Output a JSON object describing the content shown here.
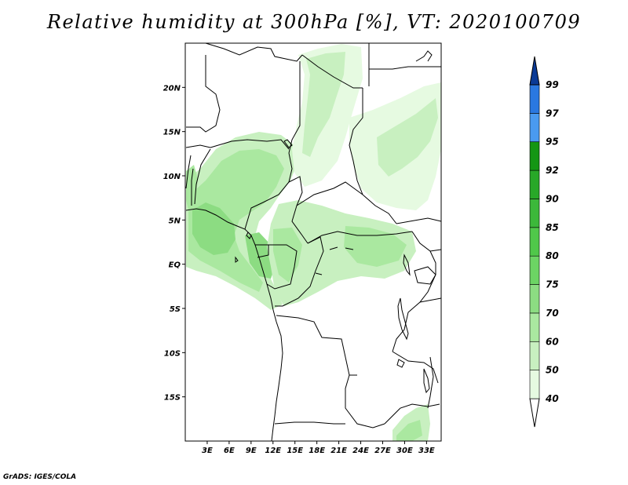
{
  "title": "Relative humidity at 300hPa [%], VT: 2020100709",
  "credit": "GrADS: IGES/COLA",
  "map": {
    "lon_range": [
      0,
      35
    ],
    "lat_range": [
      -20,
      25
    ],
    "lon_ticks": [
      "3E",
      "6E",
      "9E",
      "12E",
      "15E",
      "18E",
      "21E",
      "24E",
      "27E",
      "30E",
      "33E"
    ],
    "lat_ticks": [
      "20N",
      "15N",
      "10N",
      "5N",
      "EQ",
      "5S",
      "10S",
      "15S"
    ],
    "lon_tick_values": [
      3,
      6,
      9,
      12,
      15,
      18,
      21,
      24,
      27,
      30,
      33
    ],
    "lat_tick_values": [
      20,
      15,
      10,
      5,
      0,
      -5,
      -10,
      -15
    ]
  },
  "colorbar": {
    "levels": [
      "40",
      "50",
      "60",
      "70",
      "75",
      "80",
      "85",
      "90",
      "92",
      "95",
      "97",
      "99"
    ],
    "colors": [
      "#e6fae1",
      "#c8f0c0",
      "#aae8a0",
      "#8cdc82",
      "#6cd464",
      "#50c84a",
      "#3cb83a",
      "#28a828",
      "#149614",
      "#4a9af0",
      "#2a78e0",
      "#1450c0",
      "#0a3a96"
    ]
  }
}
